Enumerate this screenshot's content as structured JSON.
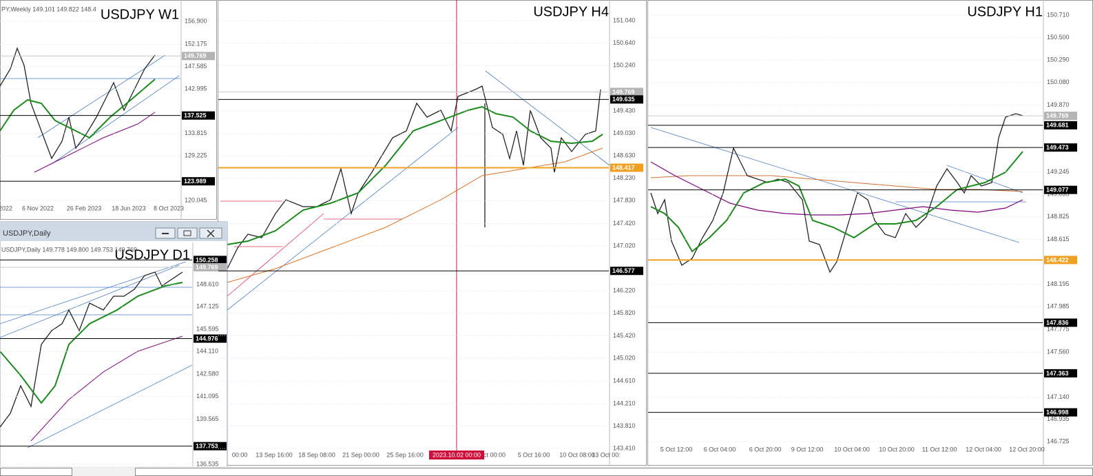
{
  "panels": [
    {
      "title": "USDJPY W1",
      "header": "PY,Weekly  149.101 149.822 148.4",
      "price_ticks": [
        "156.900",
        "152.175",
        "147.585",
        "142.995",
        "133.815",
        "129.225",
        "120.045"
      ],
      "levels": [
        {
          "label": "149.769",
          "color": "#b4b4b4"
        },
        {
          "label": "137.525",
          "color": "#000000"
        },
        {
          "label": "123.989",
          "color": "#000000"
        }
      ],
      "dates": [
        "2022",
        "6 Nov 2022",
        "26 Feb 2023",
        "18 Jun 2023",
        "8 Oct 2023"
      ]
    },
    {
      "title": "USDJPY D1",
      "window_title": "USDJPY,Daily",
      "header": "USDJPY,Daily  149.778 149.800 149.753 149.769",
      "price_ticks": [
        "148.610",
        "147.125",
        "145.595",
        "144.110",
        "142.580",
        "141.095",
        "139.565",
        "136.535"
      ],
      "levels": [
        {
          "label": "150.258",
          "color": "#000000"
        },
        {
          "label": "149.769",
          "color": "#b4b4b4"
        },
        {
          "label": "144.976",
          "color": "#000000"
        },
        {
          "label": "137.753",
          "color": "#000000"
        }
      ],
      "dates": []
    },
    {
      "title": "USDJPY H4",
      "cursor_date": "2023.10.02 00:00",
      "price_ticks": [
        "151.040",
        "150.640",
        "150.240",
        "149.430",
        "149.030",
        "148.630",
        "148.230",
        "147.830",
        "147.420",
        "147.020",
        "146.220",
        "145.820",
        "145.420",
        "145.020",
        "144.610",
        "144.210",
        "143.810",
        "143.410"
      ],
      "levels": [
        {
          "label": "149.769",
          "color": "#b4b4b4"
        },
        {
          "label": "149.635",
          "color": "#000000"
        },
        {
          "label": "148.417",
          "color": "#f0a020"
        },
        {
          "label": "146.577",
          "color": "#000000"
        }
      ],
      "dates": [
        "00:00",
        "13 Sep 16:00",
        "18 Sep 08:00",
        "21 Sep 00:00",
        "25 Sep 16:00",
        "ct 00:00",
        "5 Oct 16:00",
        "10 Oct 08:00",
        "13 Oct 00:"
      ]
    },
    {
      "title": "USDJPY H1",
      "price_ticks": [
        "150.710",
        "150.500",
        "150.290",
        "150.080",
        "149.870",
        "149.245",
        "149.035",
        "148.825",
        "148.615",
        "148.195",
        "147.985",
        "147.775",
        "147.560",
        "147.140",
        "146.935",
        "146.725"
      ],
      "levels": [
        {
          "label": "149.769",
          "color": "#b4b4b4"
        },
        {
          "label": "149.681",
          "color": "#000000"
        },
        {
          "label": "149.473",
          "color": "#000000"
        },
        {
          "label": "149.077",
          "color": "#000000"
        },
        {
          "label": "148.422",
          "color": "#f0a020"
        },
        {
          "label": "147.836",
          "color": "#000000"
        },
        {
          "label": "147.363",
          "color": "#000000"
        },
        {
          "label": "146.998",
          "color": "#000000"
        }
      ],
      "dates": [
        "5 Oct 12:00",
        "6 Oct 04:00",
        "6 Oct 20:00",
        "9 Oct 12:00",
        "10 Oct 04:00",
        "10 Oct 20:00",
        "11 Oct 12:00",
        "12 Oct 04:00",
        "12 Oct 20:00"
      ]
    }
  ]
}
